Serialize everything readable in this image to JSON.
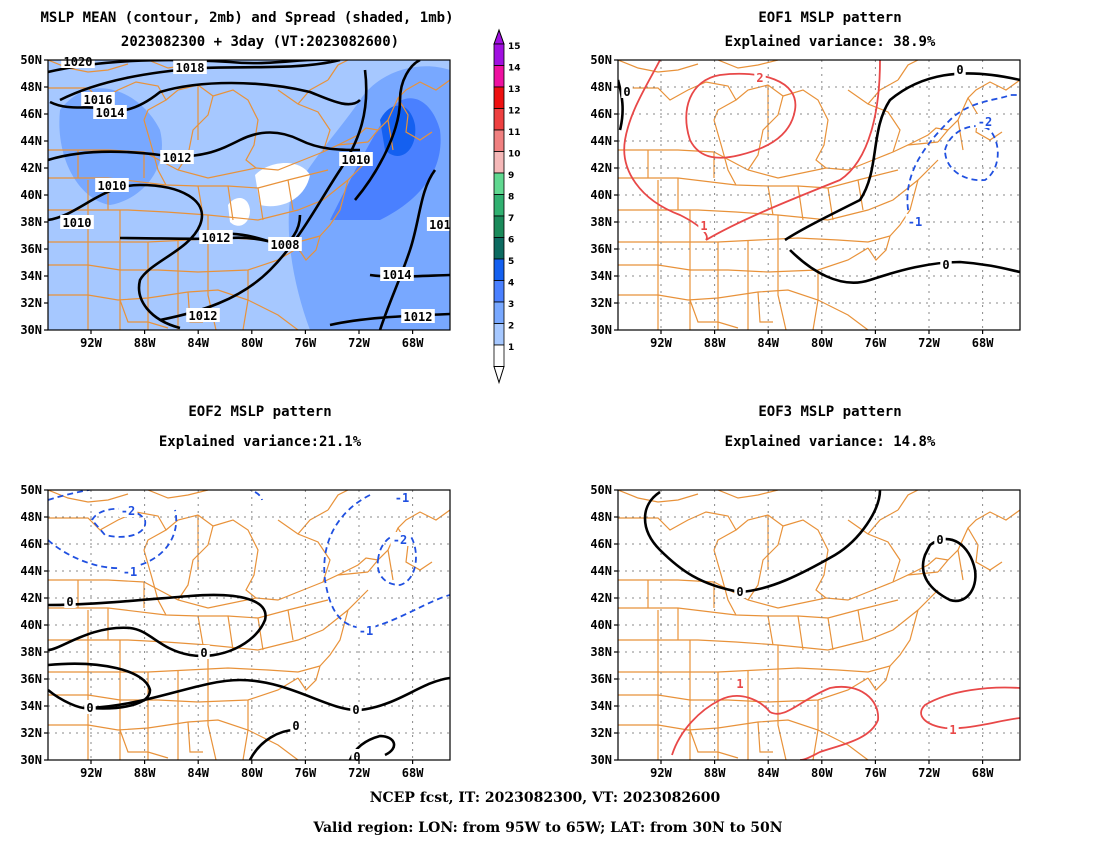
{
  "panel1": {
    "title_line1": "MSLP MEAN (contour, 2mb) and Spread (shaded, 1mb)",
    "title_line2": "2023082300 + 3day (VT:2023082600)"
  },
  "panel2": {
    "title_line1": "EOF1 MSLP pattern",
    "title_line2": "Explained variance: 38.9%"
  },
  "panel3": {
    "title_line1": "EOF2 MSLP pattern",
    "title_line2": "Explained variance:21.1%"
  },
  "panel4": {
    "title_line1": "EOF3 MSLP pattern",
    "title_line2": "Explained variance: 14.8%"
  },
  "axes": {
    "lat_labels": [
      "50N",
      "48N",
      "46N",
      "44N",
      "42N",
      "40N",
      "38N",
      "36N",
      "34N",
      "32N",
      "30N"
    ],
    "lon_labels": [
      "92W",
      "88W",
      "84W",
      "80W",
      "76W",
      "72W",
      "68W"
    ]
  },
  "colorbar": {
    "labels": [
      "1",
      "2",
      "3",
      "4",
      "5",
      "6",
      "7",
      "8",
      "9",
      "10",
      "11",
      "12",
      "13",
      "14",
      "15"
    ],
    "colors": [
      "#ffffff",
      "#a6c8ff",
      "#78a8ff",
      "#4a80ff",
      "#1460f0",
      "#0c6a60",
      "#1a8a5a",
      "#30b070",
      "#60d890",
      "#f5b8b8",
      "#f08080",
      "#ee4040",
      "#ee1010",
      "#ee10a0",
      "#a010e0"
    ]
  },
  "panel1_contour_labels": [
    "1020",
    "1018",
    "1016",
    "1014",
    "1012",
    "1010",
    "1010",
    "1012",
    "1008",
    "1010",
    "1014",
    "1012",
    "1012",
    "101"
  ],
  "panel2_contour_labels": [
    "2",
    "0",
    "0",
    "-2",
    "1",
    "-1",
    "0"
  ],
  "panel3_contour_labels": [
    "-1",
    "-2",
    "-1",
    "-2",
    "0",
    "-1",
    "0",
    "0",
    "0",
    "0",
    "0"
  ],
  "panel4_contour_labels": [
    "0",
    "0",
    "1",
    "1"
  ],
  "footer": {
    "line1": "NCEP fcst, IT: 2023082300, VT: 2023082600",
    "line2": "Valid region: LON: from 95W to 65W; LAT: from 30N to 50N"
  }
}
